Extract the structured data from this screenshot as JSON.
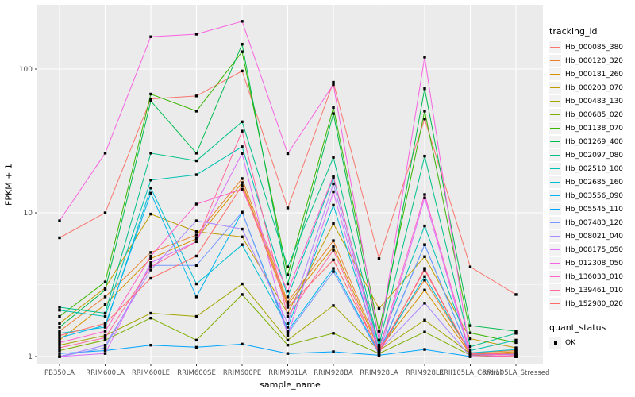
{
  "chart_data": {
    "type": "line",
    "xlabel": "sample_name",
    "ylabel": "FPKM + 1",
    "y_scale": "log10",
    "y_ticks": [
      1,
      10,
      100
    ],
    "ylim": [
      0.95,
      280
    ],
    "grid": true,
    "panel_bg": "#EBEBEB",
    "grid_color": "#FFFFFF",
    "point_marker": "black-square",
    "legend_position": "right",
    "categories": [
      "PB350LA",
      "RRIM600LA",
      "RRIM600LE",
      "RRIM600SE",
      "RRIM600PE",
      "RRIM901LA",
      "RRIM928BA",
      "RRIM928LA",
      "RRIM928LE",
      "RRII105LA_Control",
      "RRII105LA_Stressed"
    ],
    "series": [
      {
        "name": "Hb_000085_380",
        "color": "#F8766D",
        "values": [
          6.7,
          10.0,
          62,
          65,
          97,
          10.8,
          81,
          4.8,
          45,
          4.2,
          2.7
        ]
      },
      {
        "name": "Hb_000120_320",
        "color": "#EA8331",
        "values": [
          1.5,
          2.6,
          5.3,
          7.0,
          17.3,
          2.4,
          6.4,
          1.15,
          3.4,
          1.06,
          1.1
        ]
      },
      {
        "name": "Hb_000181_260",
        "color": "#D89000",
        "values": [
          1.3,
          2.3,
          4.8,
          6.6,
          16.2,
          2.3,
          5.8,
          1.12,
          2.9,
          1.04,
          1.08
        ]
      },
      {
        "name": "Hb_000203_070",
        "color": "#C09B00",
        "values": [
          1.7,
          3.0,
          9.8,
          7.4,
          6.8,
          2.0,
          8.4,
          2.16,
          4.95,
          1.33,
          1.15
        ]
      },
      {
        "name": "Hb_000483_130",
        "color": "#A3A500",
        "values": [
          1.2,
          1.4,
          2.0,
          1.9,
          3.2,
          1.3,
          2.26,
          1.1,
          1.79,
          1.05,
          1.02
        ]
      },
      {
        "name": "Hb_000685_020",
        "color": "#7CAE00",
        "values": [
          1.1,
          1.3,
          1.85,
          1.3,
          2.7,
          1.2,
          1.45,
          1.05,
          1.48,
          1.02,
          1.0
        ]
      },
      {
        "name": "Hb_001138_070",
        "color": "#39B600",
        "values": [
          1.9,
          3.3,
          67,
          51,
          132,
          3.7,
          54,
          1.5,
          51,
          1.46,
          1.25
        ]
      },
      {
        "name": "Hb_001269_400",
        "color": "#00BB4E",
        "values": [
          1.6,
          2.9,
          60,
          26,
          149,
          3.2,
          49,
          1.3,
          73,
          1.64,
          1.5
        ]
      },
      {
        "name": "Hb_002097_080",
        "color": "#00C087",
        "values": [
          2.2,
          2.0,
          26,
          23,
          43,
          4.2,
          24.3,
          1.2,
          24.8,
          1.17,
          1.45
        ]
      },
      {
        "name": "Hb_002510_100",
        "color": "#00C0B2",
        "values": [
          2.1,
          1.9,
          16.9,
          18.4,
          28.8,
          2.6,
          17.5,
          1.18,
          8.1,
          1.1,
          1.3
        ]
      },
      {
        "name": "Hb_002685_160",
        "color": "#00BDD2",
        "values": [
          1.45,
          1.6,
          14.9,
          3.2,
          6.0,
          1.6,
          11.3,
          1.08,
          3.6,
          1.06,
          1.12
        ]
      },
      {
        "name": "Hb_003556_090",
        "color": "#00B4EF",
        "values": [
          1.35,
          1.65,
          13.7,
          2.6,
          10.1,
          1.5,
          4.1,
          1.06,
          6.0,
          1.03,
          1.06
        ]
      },
      {
        "name": "Hb_005545_110",
        "color": "#00A5FF",
        "values": [
          1.05,
          1.1,
          1.2,
          1.16,
          1.22,
          1.05,
          1.08,
          1.02,
          1.12,
          1.0,
          1.0
        ]
      },
      {
        "name": "Hb_007483_120",
        "color": "#7997FF",
        "values": [
          1.0,
          1.15,
          4.3,
          4.3,
          10.1,
          1.45,
          3.9,
          1.04,
          6.0,
          1.02,
          1.04
        ]
      },
      {
        "name": "Hb_008021_040",
        "color": "#AC88FF",
        "values": [
          1.0,
          1.2,
          4.0,
          8.8,
          7.7,
          1.7,
          15.9,
          1.1,
          2.35,
          1.0,
          1.0
        ]
      },
      {
        "name": "Hb_008175_050",
        "color": "#DC71FA",
        "values": [
          1.0,
          1.05,
          4.5,
          6.3,
          25.9,
          1.4,
          14.0,
          1.02,
          12.7,
          1.0,
          1.0
        ]
      },
      {
        "name": "Hb_012308_050",
        "color": "#F763E0",
        "values": [
          8.8,
          26,
          168,
          175,
          215,
          25.8,
          78,
          1.3,
          121,
          1.0,
          1.0
        ]
      },
      {
        "name": "Hb_136033_010",
        "color": "#FF61C9",
        "values": [
          1.25,
          1.5,
          5.0,
          11.5,
          14.6,
          2.85,
          18.0,
          1.1,
          13.4,
          1.05,
          1.02
        ]
      },
      {
        "name": "Hb_139461_010",
        "color": "#FF689E",
        "values": [
          1.15,
          1.35,
          4.2,
          6.3,
          37,
          1.9,
          5.5,
          1.05,
          4.1,
          1.03,
          1.0
        ]
      },
      {
        "name": "Hb_152980_020",
        "color": "#FF6C67",
        "values": [
          1.4,
          1.7,
          3.5,
          5.0,
          15.5,
          2.2,
          4.7,
          1.08,
          4.0,
          1.04,
          1.05
        ]
      }
    ]
  },
  "legend": {
    "tracking_title": "tracking_id",
    "quant_title": "quant_status",
    "quant_items": [
      {
        "label": "OK"
      }
    ]
  }
}
